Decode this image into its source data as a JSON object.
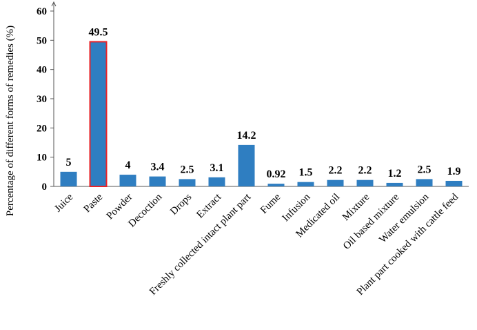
{
  "chart_data": {
    "type": "bar",
    "title": "",
    "xlabel": "",
    "ylabel": "Percentage of different forms of remedies (%)",
    "ylim": [
      0,
      60
    ],
    "yticks": [
      "0",
      "10",
      "20",
      "30",
      "40",
      "50",
      "60"
    ],
    "grid": false,
    "legend": "none",
    "bar_color": "#2f7ec1",
    "highlight_color": "#e8242a",
    "highlight_category": "Paste",
    "categories": [
      "Juice",
      "Paste",
      "Powder",
      "Decoction",
      "Drops",
      "Extract",
      "Freshly collected intact plant part",
      "Fume",
      "Infusion",
      "Medicated oil",
      "Mixture",
      "Oil based mixture",
      "Water emulsion",
      "Plant part cooked with cattle feed"
    ],
    "values": [
      5,
      49.5,
      4,
      3.4,
      2.5,
      3.1,
      14.2,
      0.92,
      1.5,
      2.2,
      2.2,
      1.2,
      2.5,
      1.9
    ],
    "data_labels": [
      "5",
      "49.5",
      "4",
      "3.4",
      "2.5",
      "3.1",
      "14.2",
      "0.92",
      "1.5",
      "2.2",
      "2.2",
      "1.2",
      "2.5",
      "1.9"
    ]
  }
}
